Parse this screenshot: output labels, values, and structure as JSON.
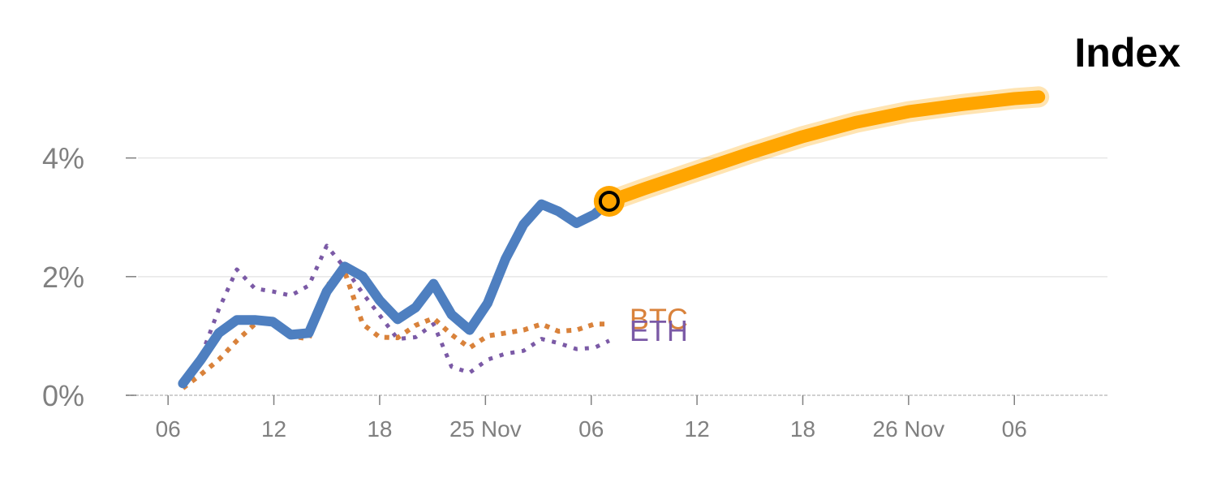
{
  "colors": {
    "index": "#4e7fc0",
    "btc": "#d9823b",
    "eth": "#7b5aa6",
    "forecast": "#ffa500",
    "grid": "#e6e6e6",
    "tick": "#808080"
  },
  "chart_data": {
    "type": "line",
    "title": "Index",
    "xlabel": "",
    "ylabel": "",
    "ylim": [
      0,
      5.5
    ],
    "yticks": [
      {
        "value": 0,
        "label": "0%"
      },
      {
        "value": 2,
        "label": "2%"
      },
      {
        "value": 4,
        "label": "4%"
      }
    ],
    "xlim": [
      -0.4,
      8.88
    ],
    "xticks": [
      {
        "value": 0,
        "label": "06"
      },
      {
        "value": 1,
        "label": "12"
      },
      {
        "value": 2,
        "label": "18"
      },
      {
        "value": 3,
        "label": "25 Nov"
      },
      {
        "value": 4,
        "label": "06"
      },
      {
        "value": 5,
        "label": "12"
      },
      {
        "value": 6,
        "label": "18"
      },
      {
        "value": 7,
        "label": "26 Nov"
      },
      {
        "value": 8,
        "label": "06"
      }
    ],
    "series": [
      {
        "name": "Index",
        "style": "solid",
        "x": [
          0.14,
          0.31,
          0.48,
          0.65,
          0.82,
          0.99,
          1.16,
          1.33,
          1.5,
          1.67,
          1.84,
          2.0,
          2.17,
          2.34,
          2.51,
          2.68,
          2.85,
          3.02,
          3.19,
          3.36,
          3.53,
          3.69,
          3.86,
          4.03,
          4.17
        ],
        "values": [
          0.2,
          0.6,
          1.05,
          1.27,
          1.27,
          1.24,
          1.02,
          1.05,
          1.75,
          2.17,
          2.0,
          1.6,
          1.28,
          1.48,
          1.88,
          1.36,
          1.1,
          1.55,
          2.3,
          2.88,
          3.22,
          3.1,
          2.9,
          3.05,
          3.27
        ]
      },
      {
        "name": "BTC",
        "style": "dotted",
        "x": [
          0.14,
          0.31,
          0.48,
          0.65,
          0.82,
          0.99,
          1.16,
          1.33,
          1.5,
          1.67,
          1.84,
          2.0,
          2.17,
          2.34,
          2.51,
          2.68,
          2.85,
          3.02,
          3.19,
          3.36,
          3.53,
          3.69,
          3.86,
          4.03,
          4.17
        ],
        "values": [
          0.12,
          0.35,
          0.6,
          0.92,
          1.2,
          1.28,
          1.0,
          0.95,
          1.85,
          2.08,
          1.2,
          0.98,
          0.97,
          1.18,
          1.3,
          1.02,
          0.8,
          1.0,
          1.05,
          1.1,
          1.2,
          1.08,
          1.1,
          1.2,
          1.2
        ]
      },
      {
        "name": "ETH",
        "style": "dotted",
        "x": [
          0.14,
          0.31,
          0.48,
          0.65,
          0.82,
          0.99,
          1.16,
          1.33,
          1.5,
          1.67,
          1.84,
          2.0,
          2.17,
          2.34,
          2.51,
          2.68,
          2.85,
          3.02,
          3.19,
          3.36,
          3.53,
          3.69,
          3.86,
          4.03,
          4.17
        ],
        "values": [
          0.2,
          0.65,
          1.45,
          2.12,
          1.8,
          1.75,
          1.68,
          1.85,
          2.52,
          2.15,
          1.72,
          1.35,
          0.95,
          0.98,
          1.2,
          0.48,
          0.38,
          0.6,
          0.7,
          0.75,
          0.95,
          0.88,
          0.78,
          0.8,
          0.92
        ]
      },
      {
        "name": "Forecast",
        "style": "thick",
        "x": [
          4.17,
          4.5,
          5.0,
          5.5,
          6.0,
          6.5,
          7.0,
          7.5,
          8.0,
          8.23
        ],
        "values": [
          3.27,
          3.48,
          3.78,
          4.08,
          4.36,
          4.6,
          4.78,
          4.9,
          5.0,
          5.03
        ]
      }
    ],
    "labels": [
      {
        "text": "BTC",
        "series": "BTC"
      },
      {
        "text": "ETH",
        "series": "ETH"
      }
    ],
    "marker": {
      "series": "Index",
      "x": 4.17,
      "y": 3.27
    }
  }
}
